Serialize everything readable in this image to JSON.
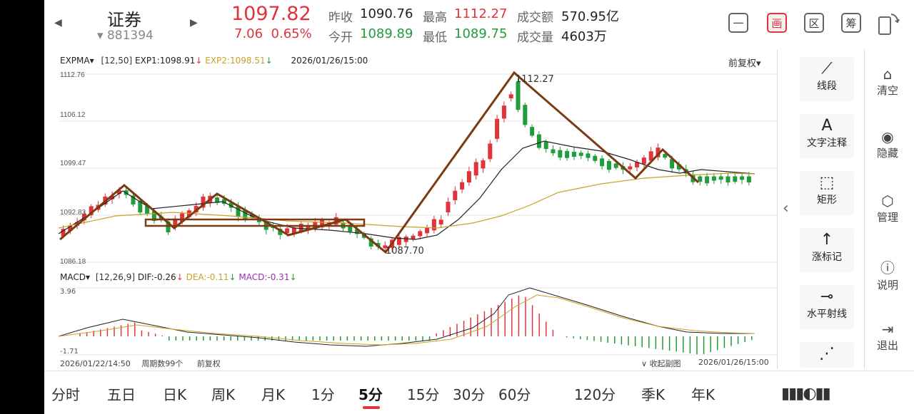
{
  "header": {
    "stock_name": "证券",
    "stock_code": "881394",
    "price": "1097.82",
    "change": "7.06",
    "change_pct": "0.65%",
    "prev_close_label": "昨收",
    "prev_close": "1090.76",
    "open_label": "今开",
    "open": "1089.89",
    "high_label": "最高",
    "high": "1112.27",
    "low_label": "最低",
    "low": "1089.75",
    "turnover_label": "成交额",
    "turnover": "570.95亿",
    "volume_label": "成交量",
    "volume": "4603万",
    "tools": [
      "一",
      "画",
      "区",
      "筹"
    ]
  },
  "main_chart": {
    "indicator": "EXPMA",
    "params": "[12,50]",
    "exp1": "EXP1:1098.91",
    "exp2": "EXP2:1098.51",
    "datetime": "2026/01/26/15:00",
    "adjust": "前复权",
    "y_ticks": [
      "1112.76",
      "1106.12",
      "1099.47",
      "1092.83",
      "1086.18"
    ],
    "high_marker": "1112.27",
    "low_marker": "1087.70"
  },
  "macd_chart": {
    "indicator": "MACD",
    "params": "[12,26,9]",
    "dif": "DIF:-0.26",
    "dea": "DEA:-0.11",
    "macd": "MACD:-0.31",
    "y_top": "3.96",
    "y_bottom": "-1.71"
  },
  "footer": {
    "start_time": "2026/01/22/14:50",
    "period_count": "周期数99个",
    "adjust": "前复权",
    "collapse": "收起副图",
    "end_time": "2026/01/26/15:00"
  },
  "side_tools": [
    {
      "icon": "line-segment-icon",
      "label": "线段"
    },
    {
      "icon": "text-icon",
      "label": "文字注释"
    },
    {
      "icon": "rectangle-icon",
      "label": "矩形"
    },
    {
      "icon": "up-arrow-icon",
      "label": "涨标记"
    },
    {
      "icon": "horizontal-ray-icon",
      "label": "水平射线"
    }
  ],
  "right_panel": [
    {
      "icon": "broom-icon",
      "label": "清空"
    },
    {
      "icon": "eye-icon",
      "label": "隐藏"
    },
    {
      "icon": "gear-icon",
      "label": "管理"
    },
    {
      "icon": "help-icon",
      "label": "说明"
    },
    {
      "icon": "exit-icon",
      "label": "退出"
    }
  ],
  "periods": [
    "分时",
    "五日",
    "日K",
    "周K",
    "月K",
    "1分",
    "5分",
    "15分",
    "30分",
    "60分",
    "120分",
    "季K",
    "年K"
  ],
  "active_period": "5分",
  "colors": {
    "up": "#e0333b",
    "down": "#1f9d3a",
    "drawing": "#7a3a12",
    "ema_fast": "#222222",
    "ema_slow": "#c9a227",
    "macd_label": "#9b2fae"
  }
}
